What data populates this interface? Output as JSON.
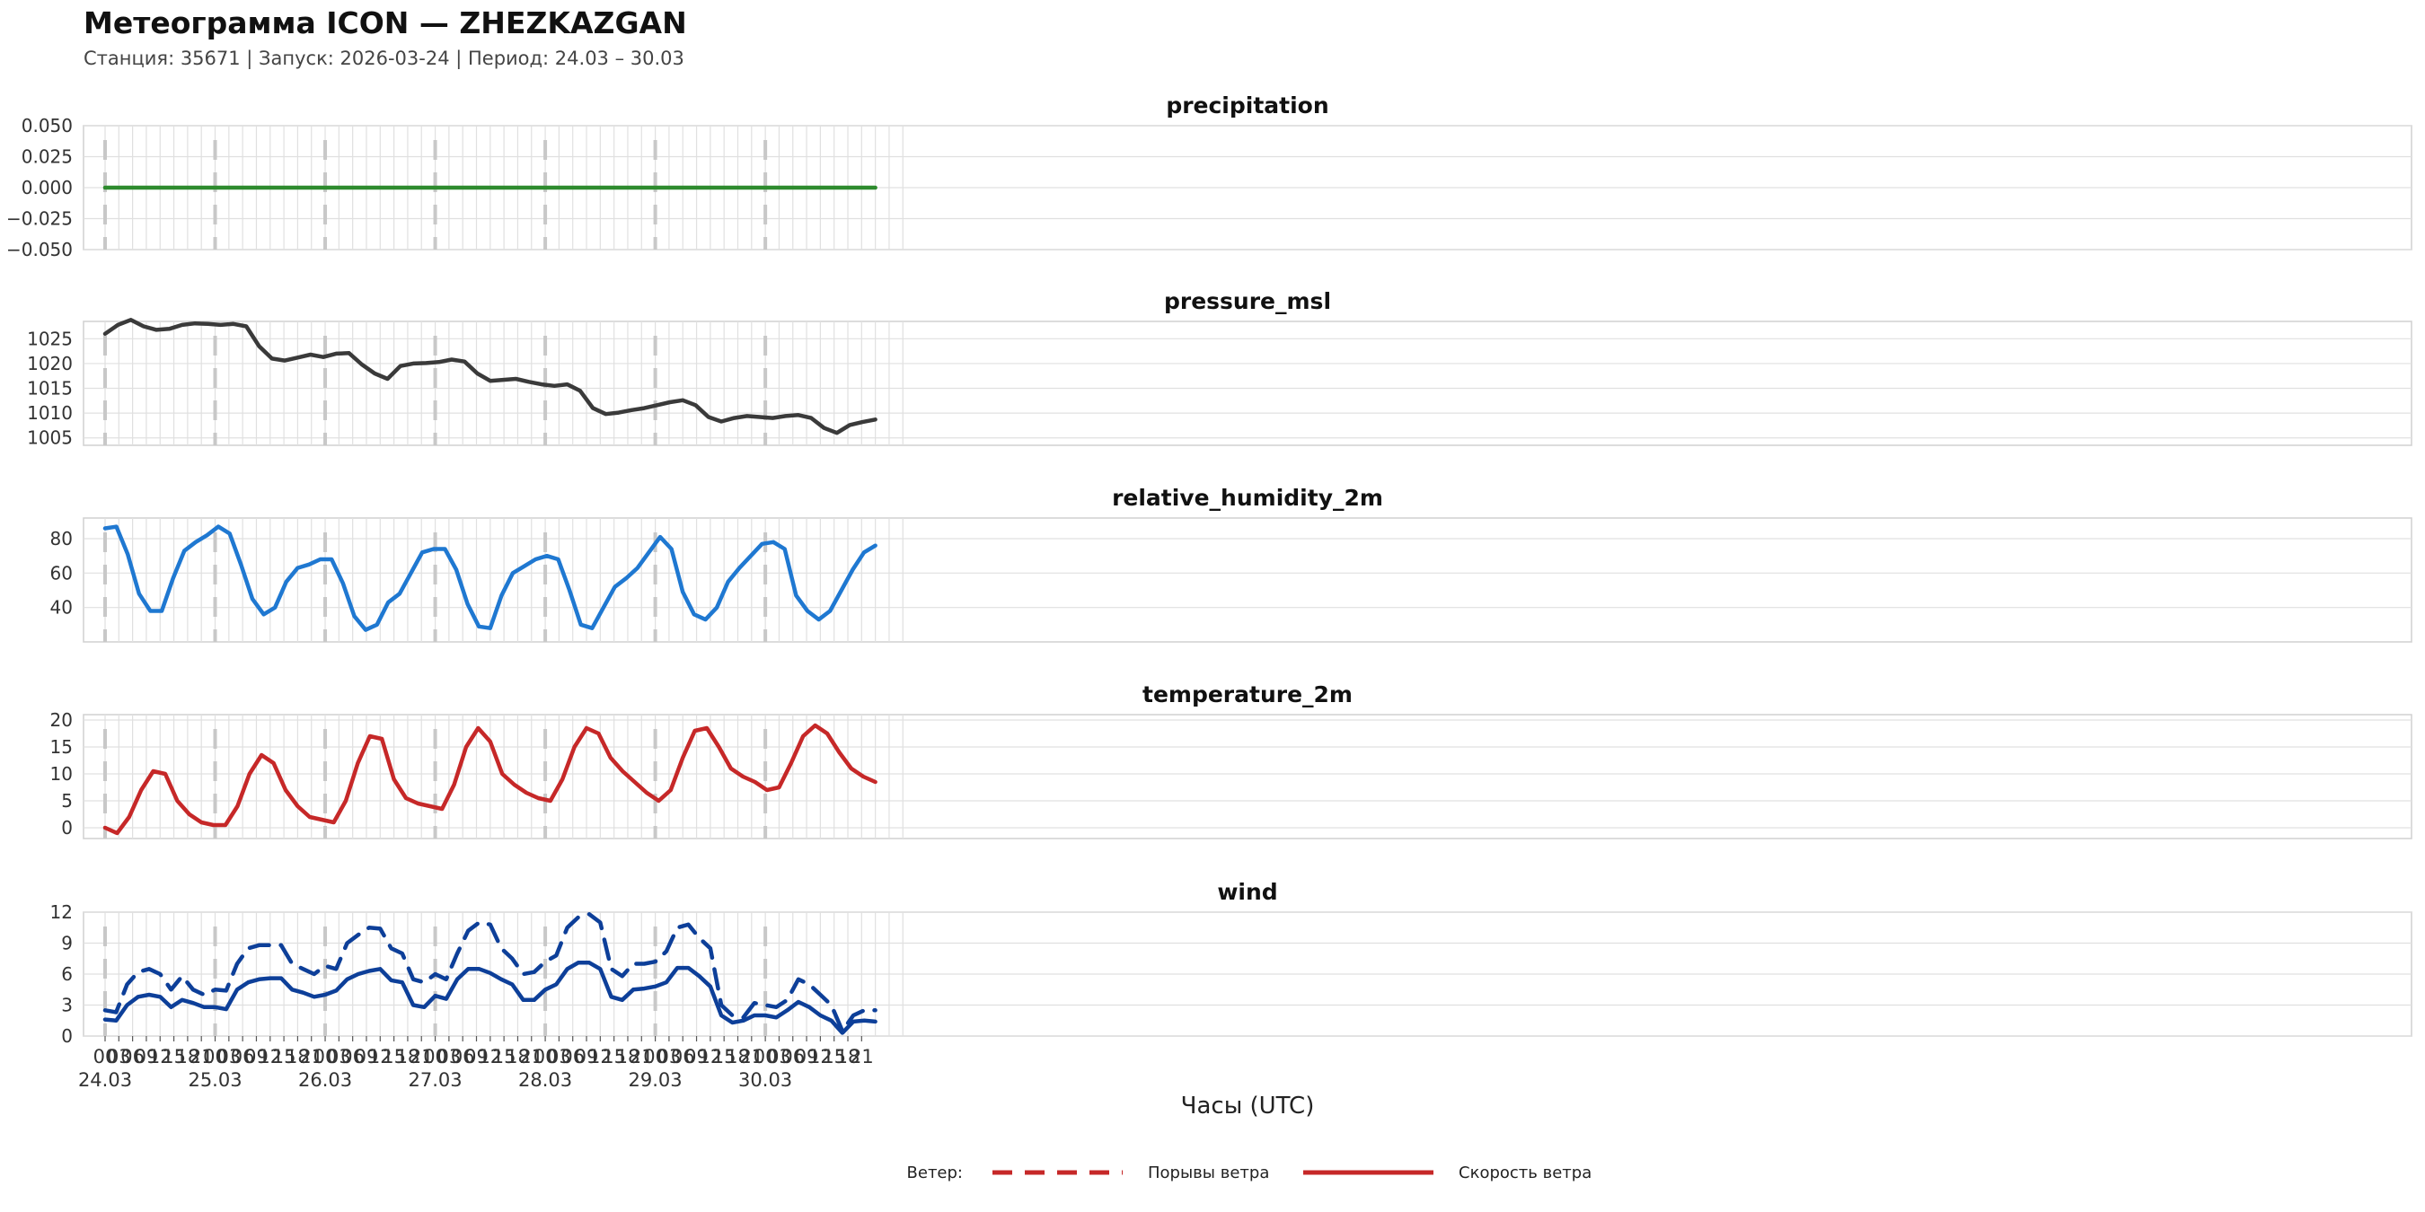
{
  "header": {
    "title": "Метеограмма ICON — ZHEZKAZGAN",
    "subtitle": "Станция: 35671  | Запуск: 2026-03-24  | Период: 24.03 – 30.03"
  },
  "colors": {
    "precipitation": "#2e8b2e",
    "pressure": "#3a3a3a",
    "humidity": "#1f78d1",
    "temperature": "#c62828",
    "wind": "#0d3f99",
    "legend_swatch": "#c62828",
    "grid": "#e0e0e0",
    "day_line": "#c8c8c8"
  },
  "chart_data": [
    {
      "type": "line",
      "title": "precipitation",
      "ylim": [
        -0.05,
        0.05
      ],
      "yticks": [
        -0.05,
        -0.025,
        0,
        0.025,
        0.05
      ],
      "ytick_labels": [
        "−0.050",
        "−0.025",
        "0.000",
        "0.025",
        "0.050"
      ],
      "series": [
        {
          "name": "precipitation",
          "color_key": "precipitation",
          "values": [
            0,
            0,
            0,
            0,
            0,
            0,
            0,
            0,
            0,
            0,
            0,
            0,
            0,
            0,
            0,
            0,
            0,
            0,
            0,
            0,
            0,
            0,
            0,
            0,
            0,
            0,
            0,
            0,
            0,
            0,
            0,
            0,
            0,
            0,
            0,
            0,
            0,
            0,
            0,
            0,
            0,
            0,
            0,
            0,
            0,
            0,
            0,
            0,
            0,
            0,
            0,
            0,
            0,
            0,
            0,
            0
          ]
        }
      ]
    },
    {
      "type": "line",
      "title": "pressure_msl",
      "ylim": [
        1003.5,
        1028.5
      ],
      "yticks": [
        1005,
        1010,
        1015,
        1020,
        1025
      ],
      "ytick_labels": [
        "1005",
        "1010",
        "1015",
        "1020",
        "1025"
      ],
      "series": [
        {
          "name": "pressure_msl",
          "color_key": "pressure",
          "values": [
            1026.0,
            1027.8,
            1028.8,
            1027.5,
            1026.8,
            1027.0,
            1027.8,
            1028.1,
            1028.0,
            1027.8,
            1028.0,
            1027.5,
            1023.5,
            1021.0,
            1020.6,
            1021.2,
            1021.8,
            1021.3,
            1022.0,
            1022.1,
            1019.8,
            1018.0,
            1016.9,
            1019.5,
            1020.0,
            1020.1,
            1020.3,
            1020.8,
            1020.4,
            1018.0,
            1016.5,
            1016.7,
            1016.9,
            1016.3,
            1015.8,
            1015.5,
            1015.8,
            1014.5,
            1011.0,
            1009.8,
            1010.1,
            1010.6,
            1011.0,
            1011.6,
            1012.2,
            1012.6,
            1011.6,
            1009.2,
            1008.3,
            1009.0,
            1009.4,
            1009.2,
            1009.0,
            1009.4,
            1009.6,
            1009.0,
            1007.0,
            1006.0,
            1007.6,
            1008.2,
            1008.7
          ]
        }
      ]
    },
    {
      "type": "line",
      "title": "relative_humidity_2m",
      "ylim": [
        20,
        92
      ],
      "yticks": [
        40,
        60,
        80
      ],
      "ytick_labels": [
        "40",
        "60",
        "80"
      ],
      "series": [
        {
          "name": "relative_humidity_2m",
          "color_key": "humidity",
          "values": [
            86,
            87,
            71,
            48,
            38,
            38,
            57,
            73,
            78,
            82,
            87,
            83,
            65,
            45,
            36,
            40,
            55,
            63,
            65,
            68,
            68,
            54,
            35,
            27,
            30,
            43,
            48,
            60,
            72,
            74,
            74,
            62,
            42,
            29,
            28,
            47,
            60,
            64,
            68,
            70,
            68,
            50,
            30,
            28,
            40,
            52,
            57,
            63,
            72,
            81,
            74,
            49,
            36,
            33,
            40,
            55,
            63,
            70,
            77,
            78,
            74,
            47,
            38,
            33,
            38,
            50,
            62,
            72,
            76
          ]
        }
      ]
    },
    {
      "type": "line",
      "title": "temperature_2m",
      "ylim": [
        -2,
        21
      ],
      "yticks": [
        0,
        5,
        10,
        15,
        20
      ],
      "ytick_labels": [
        "0",
        "5",
        "10",
        "15",
        "20"
      ],
      "series": [
        {
          "name": "temperature_2m",
          "color_key": "temperature",
          "values": [
            0,
            -1,
            2,
            7,
            10.5,
            10,
            5,
            2.5,
            1,
            0.5,
            0.5,
            4,
            10,
            13.5,
            12,
            7,
            4,
            2,
            1.5,
            1,
            5,
            12,
            17,
            16.5,
            9,
            5.5,
            4.5,
            4,
            3.5,
            8,
            15,
            18.5,
            16,
            10,
            8,
            6.5,
            5.5,
            5,
            9,
            15,
            18.5,
            17.5,
            13,
            10.5,
            8.5,
            6.5,
            5,
            7,
            13,
            18,
            18.5,
            15,
            11,
            9.5,
            8.5,
            7,
            7.5,
            12,
            17,
            19,
            17.5,
            14,
            11,
            9.5,
            8.5
          ]
        }
      ]
    },
    {
      "type": "line",
      "title": "wind",
      "ylim": [
        0,
        12
      ],
      "yticks": [
        0,
        3,
        6,
        9,
        12
      ],
      "ytick_labels": [
        "0",
        "3",
        "6",
        "9",
        "12"
      ],
      "series": [
        {
          "name": "Порывы ветра",
          "color_key": "wind",
          "dashed": true,
          "values": [
            2.5,
            2.3,
            5,
            6.2,
            6.5,
            6,
            4.5,
            5.8,
            4.5,
            4,
            4.5,
            4.4,
            7,
            8.5,
            8.8,
            8.8,
            8.8,
            7,
            6.5,
            6,
            6.8,
            6.5,
            9,
            9.8,
            10.5,
            10.4,
            8.5,
            8,
            5.5,
            5.2,
            6,
            5.5,
            8,
            10.2,
            11,
            10.8,
            8.5,
            7.5,
            6,
            6.2,
            7.2,
            7.8,
            10.5,
            11.5,
            11.8,
            11,
            6.5,
            5.8,
            7,
            7,
            7.2,
            8.2,
            10.5,
            10.8,
            9.5,
            8.5,
            3,
            2,
            1.8,
            3.2,
            3,
            2.8,
            3.5,
            5.5,
            5,
            4,
            3,
            0.5,
            2,
            2.5,
            2.5
          ]
        },
        {
          "name": "Скорость ветра",
          "color_key": "wind",
          "dashed": false,
          "values": [
            1.6,
            1.5,
            3,
            3.8,
            4,
            3.8,
            2.8,
            3.5,
            3.2,
            2.8,
            2.8,
            2.6,
            4.5,
            5.2,
            5.5,
            5.6,
            5.6,
            4.5,
            4.2,
            3.8,
            4,
            4.4,
            5.5,
            6,
            6.3,
            6.5,
            5.4,
            5.2,
            3,
            2.8,
            3.9,
            3.6,
            5.5,
            6.5,
            6.5,
            6.1,
            5.5,
            5,
            3.5,
            3.5,
            4.5,
            5,
            6.5,
            7.1,
            7.1,
            6.5,
            3.8,
            3.5,
            4.5,
            4.6,
            4.8,
            5.2,
            6.6,
            6.6,
            5.8,
            4.8,
            2,
            1.3,
            1.5,
            2,
            2,
            1.8,
            2.5,
            3.3,
            2.8,
            2,
            1.5,
            0.3,
            1.4,
            1.5,
            1.4
          ]
        }
      ]
    }
  ],
  "x_axis": {
    "hour_labels": [
      "00",
      "03",
      "06",
      "09",
      "12",
      "15",
      "18",
      "21"
    ],
    "days": [
      "24.03",
      "25.03",
      "26.03",
      "27.03",
      "28.03",
      "29.03",
      "30.03"
    ],
    "xlabel": "Часы (UTC)"
  },
  "legend": {
    "label": "Ветер:",
    "gusts": "Порывы ветра",
    "speed": "Скорость ветра"
  }
}
